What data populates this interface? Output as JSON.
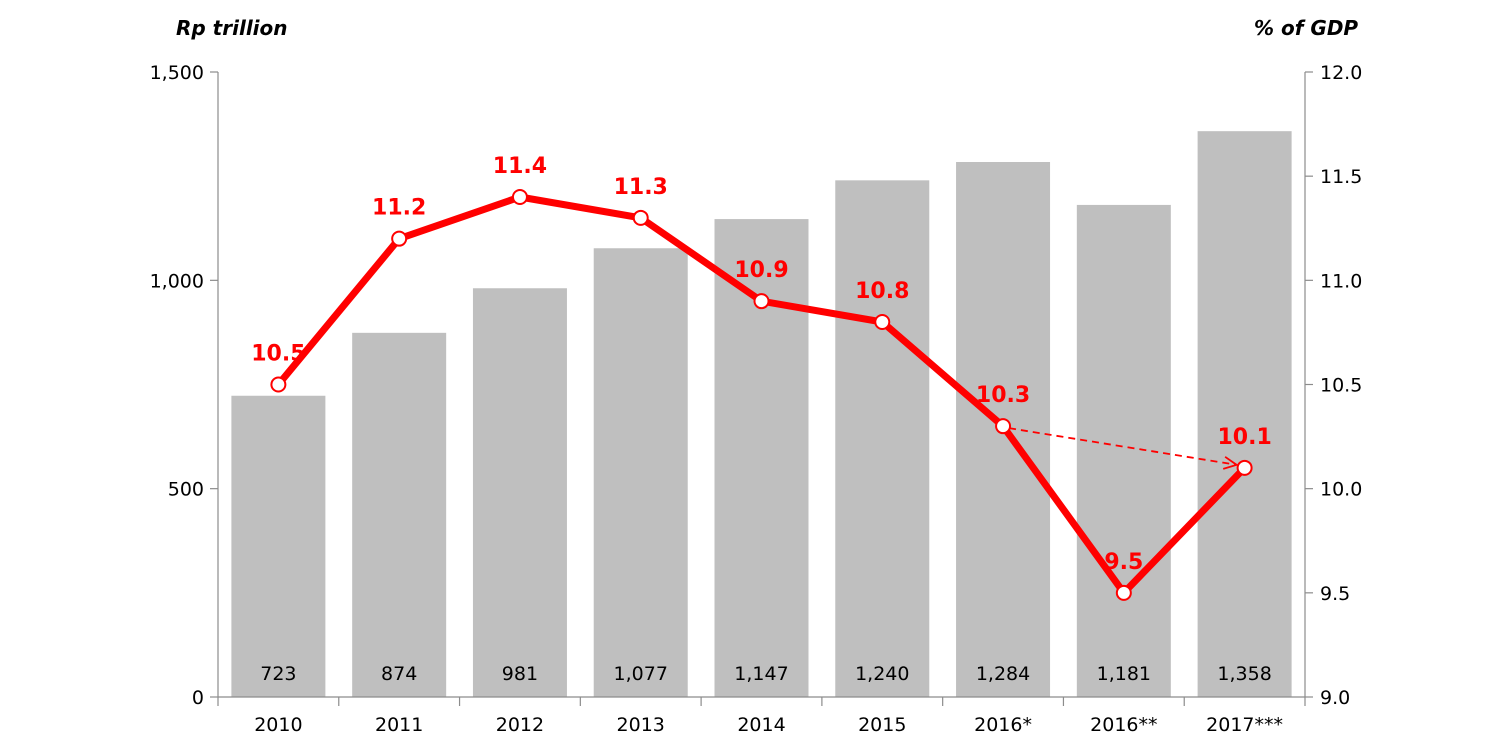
{
  "chart_data": {
    "type": "bar",
    "categories": [
      "2010",
      "2011",
      "2012",
      "2013",
      "2014",
      "2015",
      "2016*",
      "2016**",
      "2017***"
    ],
    "series": [
      {
        "type": "bar",
        "axis": "left",
        "values": [
          723,
          874,
          981,
          1077,
          1147,
          1240,
          1284,
          1181,
          1358
        ],
        "labels": [
          "723",
          "874",
          "981",
          "1,077",
          "1,147",
          "1,240",
          "1,284",
          "1,181",
          "1,358"
        ],
        "color": "#bfbfbf"
      },
      {
        "type": "line",
        "axis": "right",
        "values": [
          10.5,
          11.2,
          11.4,
          11.3,
          10.9,
          10.8,
          10.3,
          9.5,
          10.1
        ],
        "labels": [
          "10.5",
          "11.2",
          "11.4",
          "11.3",
          "10.9",
          "10.8",
          "10.3",
          "9.5",
          "10.1"
        ],
        "color": "#ff0000"
      }
    ],
    "ylabel": "Rp trillion",
    "ylabel_right": "% of GDP",
    "ylim": [
      0,
      1500
    ],
    "ylim_right": [
      9.0,
      12.0
    ],
    "yticks": [
      "0",
      "500",
      "1,000",
      "1,500"
    ],
    "yticks_right": [
      "9.0",
      "9.5",
      "10.0",
      "10.5",
      "11.0",
      "11.5",
      "12.0"
    ],
    "annotations": [
      {
        "type": "dashed-arrow",
        "from_category": "2016*",
        "to_category": "2017***"
      }
    ],
    "grid": false,
    "legend": "none"
  }
}
